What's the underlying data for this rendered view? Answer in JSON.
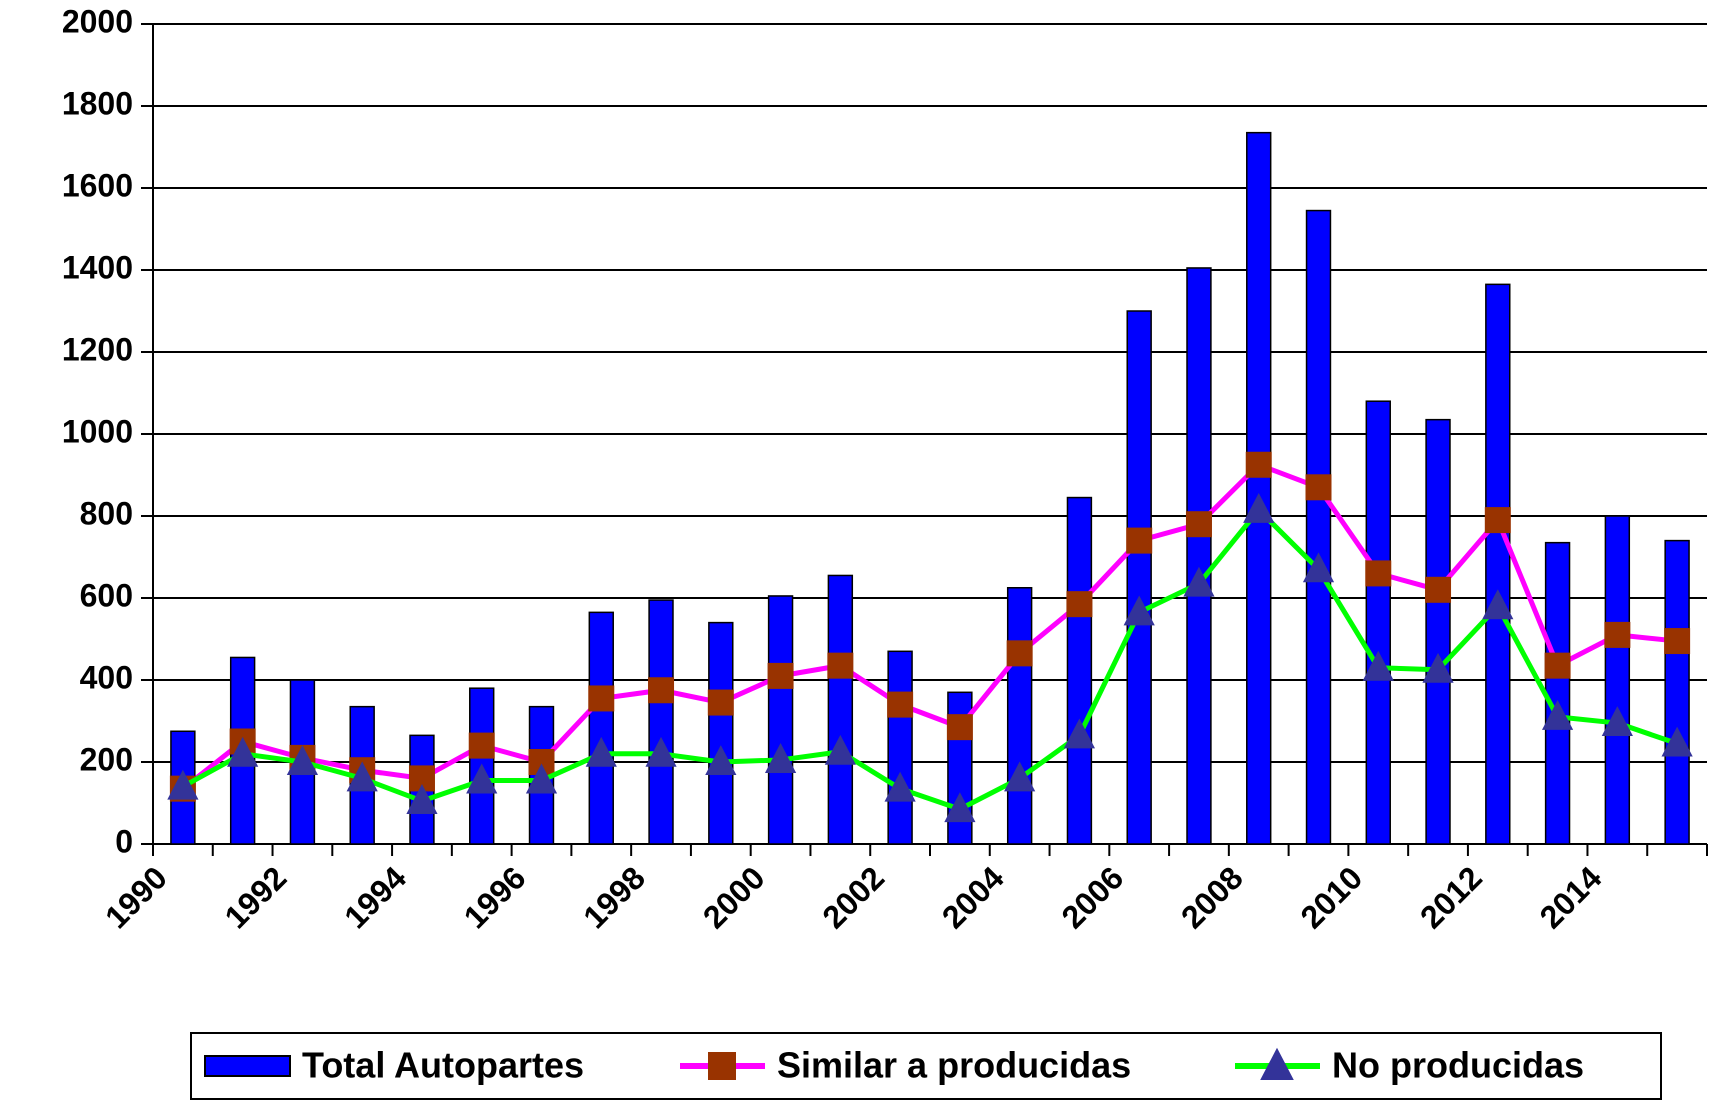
{
  "chart_data": {
    "type": "bar_line",
    "categories": [
      "1990",
      null,
      "1992",
      null,
      "1994",
      null,
      "1996",
      null,
      "1998",
      null,
      "2000",
      null,
      "2002",
      null,
      "2004",
      null,
      "2006",
      null,
      "2008",
      null,
      "2010",
      null,
      "2012",
      null,
      "2014",
      null
    ],
    "series": [
      {
        "name": "Total Autopartes",
        "type": "bar",
        "color": "#0000ff",
        "values": [
          275,
          455,
          400,
          335,
          265,
          380,
          335,
          565,
          595,
          540,
          605,
          655,
          470,
          370,
          625,
          845,
          1300,
          1405,
          1735,
          1545,
          1080,
          1035,
          1365,
          735,
          800,
          740
        ]
      },
      {
        "name": "Similar a producidas",
        "type": "line",
        "color": "#ff00ff",
        "marker": "square",
        "marker_color": "#993300",
        "values": [
          135,
          250,
          210,
          180,
          160,
          240,
          200,
          355,
          375,
          345,
          410,
          435,
          340,
          285,
          465,
          585,
          740,
          780,
          925,
          870,
          660,
          620,
          790,
          435,
          510,
          495
        ]
      },
      {
        "name": "No producidas",
        "type": "line",
        "color": "#00ff00",
        "marker": "triangle",
        "marker_color": "#333399",
        "values": [
          140,
          220,
          200,
          160,
          105,
          155,
          155,
          220,
          220,
          200,
          205,
          225,
          135,
          85,
          160,
          265,
          565,
          635,
          815,
          670,
          430,
          425,
          580,
          310,
          295,
          245
        ]
      }
    ],
    "ylim": [
      0,
      2000
    ],
    "yticks": [
      0,
      200,
      400,
      600,
      800,
      1000,
      1200,
      1400,
      1600,
      1800,
      2000
    ],
    "grid": true,
    "legend": "bottom"
  }
}
